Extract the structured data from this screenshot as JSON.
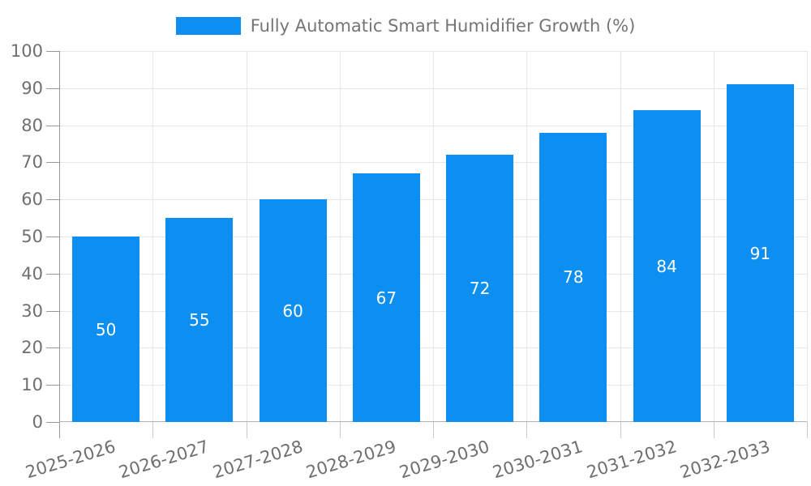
{
  "legend": {
    "label": "Fully Automatic Smart Humidifier Growth (%)"
  },
  "colors": {
    "bar": "#0d8ff2",
    "grid": "#e7e7e7",
    "y_axis": "#999999",
    "x_axis": "#b3b3b3",
    "y_tick": "#999999",
    "x_tick": "#c9c9c9",
    "axis_label_text": "#6f6f6f",
    "legend_text": "#757575",
    "bar_value_text": "#ffffff",
    "background": "#ffffff"
  },
  "chart_data": {
    "type": "bar",
    "title": "Fully Automatic Smart Humidifier Growth (%)",
    "categories": [
      "2025-2026",
      "2026-2027",
      "2027-2028",
      "2028-2029",
      "2029-2030",
      "2030-2031",
      "2031-2032",
      "2032-2033"
    ],
    "values": [
      50,
      55,
      60,
      67,
      72,
      78,
      84,
      91
    ],
    "xlabel": "",
    "ylabel": "",
    "ylim": [
      0,
      100
    ],
    "y_tick_step": 10,
    "y_tick_labels": [
      "0",
      "10",
      "20",
      "30",
      "40",
      "50",
      "60",
      "70",
      "80",
      "90",
      "100"
    ],
    "grid": true,
    "legend_position": "top-center",
    "value_label_position": "inside-center",
    "x_label_rotation_deg": -17
  }
}
